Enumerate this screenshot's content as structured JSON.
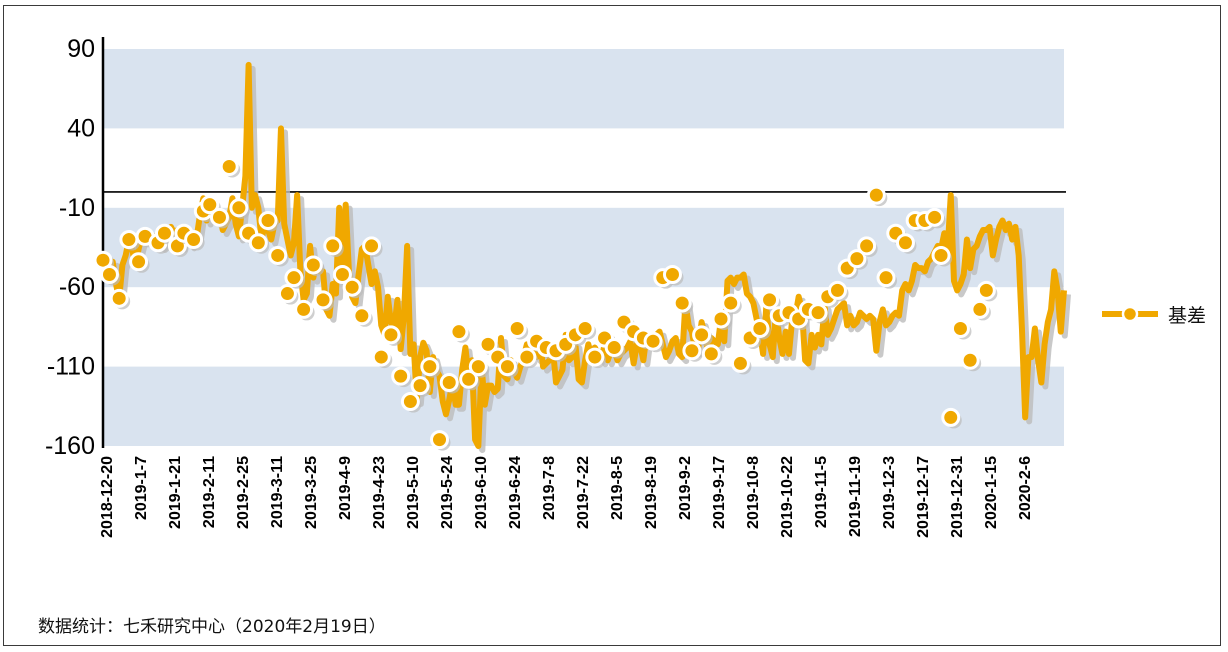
{
  "colors": {
    "series": "#F0A800",
    "band": "#D9E3EF",
    "shadow": "#BBBBBB",
    "axis": "#000000"
  },
  "footnote": "数据统计：七禾研究中心（2020年2月19日）",
  "chart_data": {
    "type": "line",
    "title": "",
    "xlabel": "",
    "ylabel": "",
    "ylim": [
      -160,
      90
    ],
    "yticks": [
      90,
      40,
      -10,
      -60,
      -110,
      -160
    ],
    "reference_line": 0,
    "legend_position": "right",
    "x_tick_labels": [
      "2018-12-20",
      "2019-1-7",
      "2019-1-21",
      "2019-2-11",
      "2019-2-25",
      "2019-3-11",
      "2019-3-25",
      "2019-4-9",
      "2019-4-23",
      "2019-5-10",
      "2019-5-24",
      "2019-6-10",
      "2019-6-24",
      "2019-7-8",
      "2019-7-22",
      "2019-8-5",
      "2019-8-19",
      "2019-9-2",
      "2019-9-17",
      "2019-10-8",
      "2019-10-22",
      "2019-11-5",
      "2019-11-19",
      "2019-12-3",
      "2019-12-17",
      "2019-12-31",
      "2020-1-15",
      "2020-2-6"
    ],
    "series": [
      {
        "name": "基差",
        "values": [
          -43,
          -40,
          -52,
          -44,
          -58,
          -67,
          -46,
          -40,
          -30,
          -36,
          -46,
          -36,
          -28,
          -26,
          -28,
          -32,
          -32,
          -26,
          -34,
          -32,
          -26,
          -22,
          -26,
          -24,
          -34,
          -26,
          -30,
          -33,
          -26,
          -28,
          -14,
          -4,
          -18,
          -6,
          -10,
          -14,
          -12,
          -24,
          -20,
          -16,
          -4,
          -20,
          -28,
          -10,
          10,
          80,
          -10,
          -2,
          -10,
          -30,
          -20,
          -24,
          -30,
          -20,
          -18,
          40,
          -20,
          -30,
          -40,
          -32,
          -2,
          -50,
          -68,
          -64,
          -34,
          -54,
          -44,
          -50,
          -50,
          -74,
          -78,
          -58,
          -64,
          -10,
          -50,
          -8,
          -50,
          -66,
          -70,
          -52,
          -36,
          -34,
          -46,
          -58,
          -50,
          -60,
          -84,
          -90,
          -66,
          -82,
          -86,
          -68,
          -99,
          -78,
          -34,
          -102,
          -96,
          -131,
          -104,
          -95,
          -100,
          -126,
          -104,
          -112,
          -116,
          -132,
          -140,
          -131,
          -120,
          -134,
          -134,
          -112,
          -98,
          -116,
          -106,
          -156,
          -160,
          -110,
          -134,
          -122,
          -122,
          -126,
          -124,
          -92,
          -116,
          -118,
          -106,
          -113,
          -117,
          -110,
          -104,
          -96,
          -102,
          -98,
          -104,
          -92,
          -110,
          -108,
          -106,
          -98,
          -120,
          -116,
          -112,
          -90,
          -106,
          -104,
          -96,
          -118,
          -120,
          -106,
          -96,
          -104,
          -98,
          -102,
          -106,
          -96,
          -106,
          -100,
          -100,
          -106,
          -102,
          -100,
          -98,
          -94,
          -108,
          -96,
          -96,
          -106,
          -90,
          -96,
          -92,
          -90,
          -88,
          -96,
          -104,
          -100,
          -94,
          -92,
          -102,
          -104,
          -70,
          -84,
          -88,
          -100,
          -98,
          -82,
          -90,
          -100,
          -92,
          -94,
          -96,
          -80,
          -94,
          -56,
          -54,
          -58,
          -54,
          -54,
          -52,
          -64,
          -66,
          -70,
          -80,
          -88,
          -102,
          -72,
          -96,
          -104,
          -74,
          -92,
          -102,
          -88,
          -102,
          -80,
          -78,
          -66,
          -74,
          -106,
          -108,
          -90,
          -98,
          -90,
          -96,
          -72,
          -90,
          -86,
          -80,
          -74,
          -72,
          -70,
          -84,
          -78,
          -84,
          -82,
          -76,
          -78,
          -80,
          -78,
          -80,
          -100,
          -82,
          -74,
          -84,
          -82,
          -78,
          -76,
          -78,
          -62,
          -58,
          -62,
          -56,
          -46,
          -48,
          -48,
          -50,
          -44,
          -42,
          -38,
          -34,
          -36,
          -26,
          -38,
          -2,
          -56,
          -62,
          -58,
          -52,
          -30,
          -48,
          -36,
          -34,
          -28,
          -24,
          -24,
          -22,
          -40,
          -30,
          -22,
          -18,
          -24,
          -20,
          -30,
          -22,
          -40,
          -86,
          -142,
          -104,
          -104,
          -86,
          -106,
          -120,
          -96,
          -82,
          -74,
          -50,
          -62,
          -88,
          -62
        ]
      }
    ],
    "markers": [
      {
        "x": 0,
        "y": -43
      },
      {
        "x": 2,
        "y": -52
      },
      {
        "x": 5,
        "y": -67
      },
      {
        "x": 8,
        "y": -30
      },
      {
        "x": 11,
        "y": -44
      },
      {
        "x": 13,
        "y": -28
      },
      {
        "x": 17,
        "y": -32
      },
      {
        "x": 19,
        "y": -26
      },
      {
        "x": 23,
        "y": -34
      },
      {
        "x": 25,
        "y": -26
      },
      {
        "x": 28,
        "y": -30
      },
      {
        "x": 31,
        "y": -12
      },
      {
        "x": 33,
        "y": -8
      },
      {
        "x": 36,
        "y": -16
      },
      {
        "x": 39,
        "y": 16
      },
      {
        "x": 42,
        "y": -10
      },
      {
        "x": 45,
        "y": -26
      },
      {
        "x": 48,
        "y": -32
      },
      {
        "x": 51,
        "y": -18
      },
      {
        "x": 54,
        "y": -40
      },
      {
        "x": 57,
        "y": -64
      },
      {
        "x": 59,
        "y": -54
      },
      {
        "x": 62,
        "y": -74
      },
      {
        "x": 65,
        "y": -46
      },
      {
        "x": 68,
        "y": -68
      },
      {
        "x": 71,
        "y": -34
      },
      {
        "x": 74,
        "y": -52
      },
      {
        "x": 77,
        "y": -60
      },
      {
        "x": 80,
        "y": -78
      },
      {
        "x": 83,
        "y": -34
      },
      {
        "x": 86,
        "y": -104
      },
      {
        "x": 89,
        "y": -90
      },
      {
        "x": 92,
        "y": -116
      },
      {
        "x": 95,
        "y": -132
      },
      {
        "x": 98,
        "y": -122
      },
      {
        "x": 101,
        "y": -110
      },
      {
        "x": 104,
        "y": -156
      },
      {
        "x": 107,
        "y": -120
      },
      {
        "x": 110,
        "y": -88
      },
      {
        "x": 113,
        "y": -118
      },
      {
        "x": 116,
        "y": -110
      },
      {
        "x": 119,
        "y": -96
      },
      {
        "x": 122,
        "y": -104
      },
      {
        "x": 125,
        "y": -110
      },
      {
        "x": 128,
        "y": -86
      },
      {
        "x": 131,
        "y": -104
      },
      {
        "x": 134,
        "y": -94
      },
      {
        "x": 137,
        "y": -98
      },
      {
        "x": 140,
        "y": -100
      },
      {
        "x": 143,
        "y": -96
      },
      {
        "x": 146,
        "y": -90
      },
      {
        "x": 149,
        "y": -86
      },
      {
        "x": 152,
        "y": -104
      },
      {
        "x": 155,
        "y": -92
      },
      {
        "x": 158,
        "y": -98
      },
      {
        "x": 161,
        "y": -82
      },
      {
        "x": 164,
        "y": -88
      },
      {
        "x": 167,
        "y": -92
      },
      {
        "x": 170,
        "y": -94
      },
      {
        "x": 173,
        "y": -54
      },
      {
        "x": 176,
        "y": -52
      },
      {
        "x": 179,
        "y": -70
      },
      {
        "x": 182,
        "y": -100
      },
      {
        "x": 185,
        "y": -90
      },
      {
        "x": 188,
        "y": -102
      },
      {
        "x": 191,
        "y": -80
      },
      {
        "x": 194,
        "y": -70
      },
      {
        "x": 197,
        "y": -108
      },
      {
        "x": 200,
        "y": -92
      },
      {
        "x": 203,
        "y": -86
      },
      {
        "x": 206,
        "y": -68
      },
      {
        "x": 209,
        "y": -78
      },
      {
        "x": 212,
        "y": -76
      },
      {
        "x": 215,
        "y": -80
      },
      {
        "x": 218,
        "y": -74
      },
      {
        "x": 221,
        "y": -76
      },
      {
        "x": 224,
        "y": -66
      },
      {
        "x": 227,
        "y": -62
      },
      {
        "x": 230,
        "y": -48
      },
      {
        "x": 233,
        "y": -42
      },
      {
        "x": 236,
        "y": -34
      },
      {
        "x": 239,
        "y": -2
      },
      {
        "x": 242,
        "y": -54
      },
      {
        "x": 245,
        "y": -26
      },
      {
        "x": 248,
        "y": -32
      },
      {
        "x": 251,
        "y": -18
      },
      {
        "x": 254,
        "y": -18
      },
      {
        "x": 257,
        "y": -16
      },
      {
        "x": 259,
        "y": -40
      },
      {
        "x": 262,
        "y": -142
      },
      {
        "x": 265,
        "y": -86
      },
      {
        "x": 268,
        "y": -106
      },
      {
        "x": 271,
        "y": -74
      },
      {
        "x": 273,
        "y": -62
      }
    ]
  }
}
